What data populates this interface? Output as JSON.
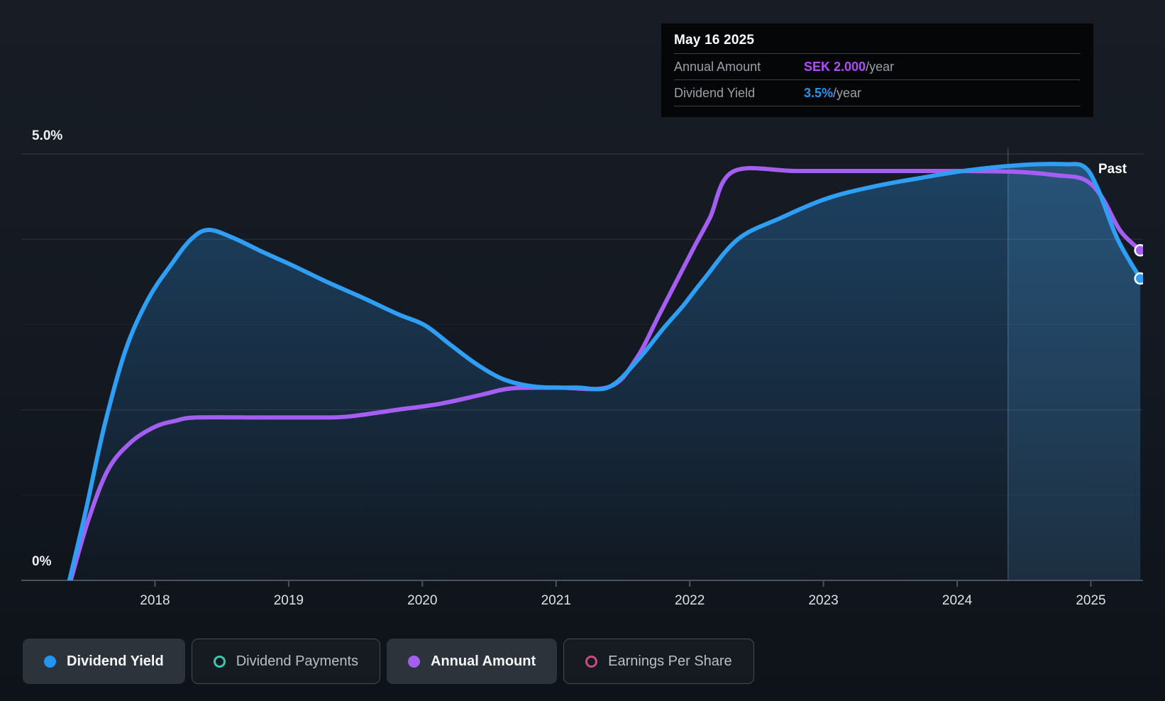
{
  "past_label": "Past",
  "tooltip": {
    "date": "May 16 2025",
    "rows": [
      {
        "label": "Annual Amount",
        "value": "SEK 2.000",
        "suffix": "/year",
        "value_color": "#b04ef5"
      },
      {
        "label": "Dividend Yield",
        "value": "3.5%",
        "suffix": "/year",
        "value_color": "#2196f3"
      }
    ]
  },
  "legend": {
    "items": [
      {
        "label": "Dividend Yield",
        "style": "filled",
        "color": "#2196f3",
        "active": true
      },
      {
        "label": "Dividend Payments",
        "style": "ring",
        "color": "#38c9b4",
        "active": false
      },
      {
        "label": "Annual Amount",
        "style": "filled",
        "color": "#a55ef2",
        "active": true
      },
      {
        "label": "Earnings Per Share",
        "style": "ring",
        "color": "#c94b84",
        "active": false
      }
    ]
  },
  "chart_data": {
    "type": "line",
    "title": "",
    "x_axis": {
      "domain": [
        2017.0,
        2025.39
      ],
      "ticks": [
        2018,
        2019,
        2020,
        2021,
        2022,
        2023,
        2024,
        2025
      ],
      "tick_labels": [
        "2018",
        "2019",
        "2020",
        "2021",
        "2022",
        "2023",
        "2024",
        "2025"
      ]
    },
    "y_axis": {
      "domain": [
        0,
        5
      ],
      "unit": "%",
      "label_top": "5.0%",
      "label_bottom": "0%",
      "gridlines": [
        {
          "value": 5,
          "opacity": 0.14
        },
        {
          "value": 4,
          "opacity": 0.11
        },
        {
          "value": 3,
          "opacity": 0.04
        },
        {
          "value": 2,
          "opacity": 0.11
        },
        {
          "value": 1,
          "opacity": 0.04
        }
      ]
    },
    "past_divider_x": 2024.38,
    "series": [
      {
        "name": "Dividend Yield",
        "color": "#2f9ef5",
        "area_fill": true,
        "end_marker": true,
        "points": [
          [
            2017.36,
            0.0
          ],
          [
            2017.48,
            0.8
          ],
          [
            2017.62,
            1.8
          ],
          [
            2017.78,
            2.7
          ],
          [
            2017.95,
            3.3
          ],
          [
            2018.12,
            3.7
          ],
          [
            2018.27,
            4.0
          ],
          [
            2018.4,
            4.11
          ],
          [
            2018.58,
            4.02
          ],
          [
            2018.82,
            3.84
          ],
          [
            2019.02,
            3.7
          ],
          [
            2019.3,
            3.49
          ],
          [
            2019.56,
            3.31
          ],
          [
            2019.82,
            3.12
          ],
          [
            2020.02,
            2.99
          ],
          [
            2020.22,
            2.75
          ],
          [
            2020.42,
            2.52
          ],
          [
            2020.62,
            2.35
          ],
          [
            2020.85,
            2.27
          ],
          [
            2021.15,
            2.26
          ],
          [
            2021.4,
            2.27
          ],
          [
            2021.62,
            2.6
          ],
          [
            2021.8,
            2.95
          ],
          [
            2021.95,
            3.22
          ],
          [
            2022.1,
            3.52
          ],
          [
            2022.36,
            4.0
          ],
          [
            2022.68,
            4.25
          ],
          [
            2023.03,
            4.48
          ],
          [
            2023.38,
            4.62
          ],
          [
            2023.73,
            4.72
          ],
          [
            2024.09,
            4.81
          ],
          [
            2024.48,
            4.87
          ],
          [
            2024.8,
            4.88
          ],
          [
            2024.95,
            4.85
          ],
          [
            2025.05,
            4.6
          ],
          [
            2025.2,
            4.0
          ],
          [
            2025.37,
            3.54
          ]
        ]
      },
      {
        "name": "Annual Amount",
        "color": "#a55ef2",
        "area_fill": false,
        "end_marker": true,
        "points": [
          [
            2017.37,
            0.0
          ],
          [
            2017.5,
            0.7
          ],
          [
            2017.65,
            1.3
          ],
          [
            2017.82,
            1.62
          ],
          [
            2018.0,
            1.8
          ],
          [
            2018.15,
            1.87
          ],
          [
            2018.31,
            1.91
          ],
          [
            2018.8,
            1.91
          ],
          [
            2019.2,
            1.91
          ],
          [
            2019.44,
            1.92
          ],
          [
            2019.81,
            2.0
          ],
          [
            2020.13,
            2.07
          ],
          [
            2020.45,
            2.18
          ],
          [
            2020.66,
            2.25
          ],
          [
            2021.0,
            2.26
          ],
          [
            2021.4,
            2.27
          ],
          [
            2021.6,
            2.6
          ],
          [
            2021.78,
            3.14
          ],
          [
            2022.02,
            3.87
          ],
          [
            2022.15,
            4.25
          ],
          [
            2022.32,
            4.79
          ],
          [
            2022.8,
            4.8
          ],
          [
            2023.4,
            4.8
          ],
          [
            2024.0,
            4.8
          ],
          [
            2024.45,
            4.79
          ],
          [
            2024.75,
            4.75
          ],
          [
            2024.95,
            4.7
          ],
          [
            2025.08,
            4.5
          ],
          [
            2025.22,
            4.1
          ],
          [
            2025.37,
            3.87
          ]
        ]
      }
    ]
  }
}
